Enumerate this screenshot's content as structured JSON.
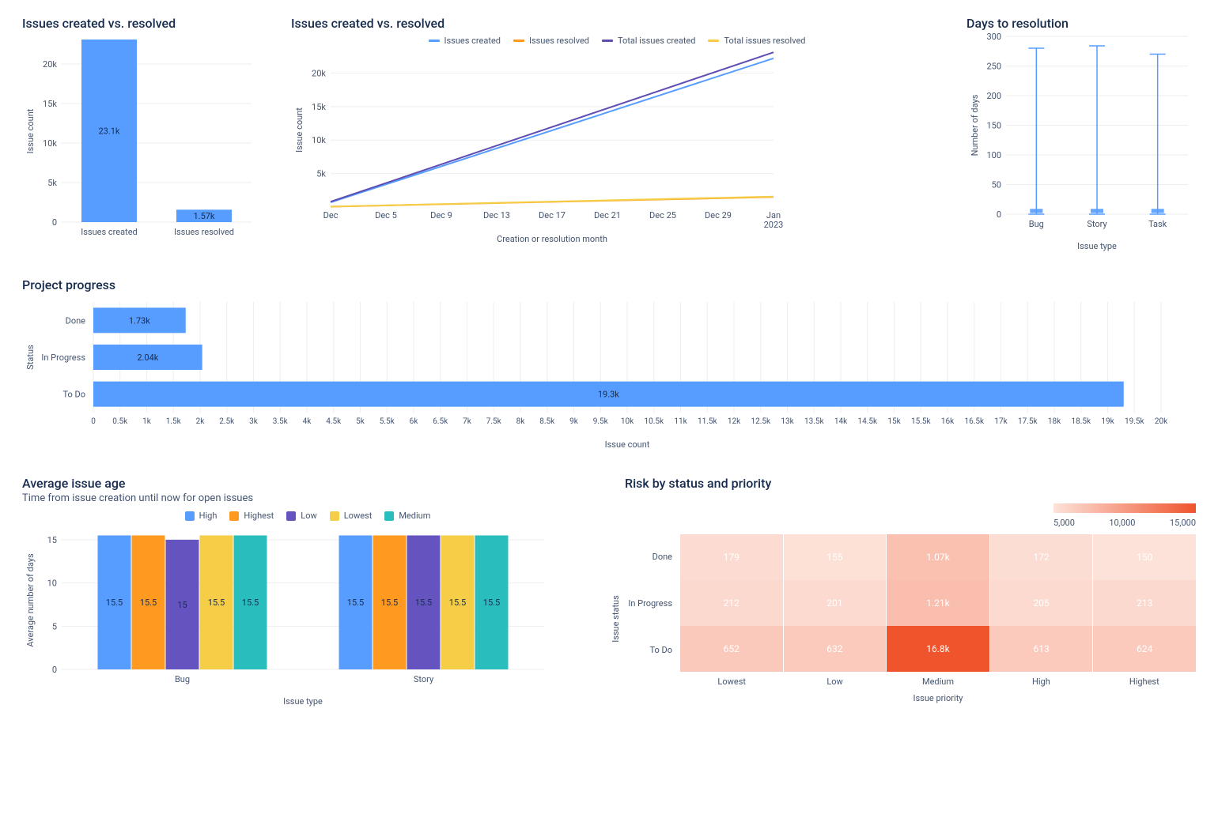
{
  "colors": {
    "blue": "#579dff",
    "blue_dark": "#5e4db2",
    "orange": "#ff991f",
    "amber": "#f5cd47",
    "purple": "#6554c0",
    "teal": "#2abdbd",
    "text": "#172b4d",
    "muted": "#44546f",
    "grid": "#eeeeee",
    "heat_min": "#fde2d9",
    "heat_max": "#ef542d"
  },
  "bar_chart": {
    "type": "bar",
    "title": "Issues created vs. resolved",
    "ylabel": "Issue count",
    "categories": [
      "Issues created",
      "Issues resolved"
    ],
    "values": [
      23100,
      1570
    ],
    "value_labels": [
      "23.1k",
      "1.57k"
    ],
    "ylim": [
      0,
      23000
    ],
    "yticks": [
      0,
      5000,
      10000,
      15000,
      20000
    ],
    "ytick_labels": [
      "0",
      "5k",
      "10k",
      "15k",
      "20k"
    ],
    "bar_color": "#579dff"
  },
  "line_chart": {
    "type": "line",
    "title": "Issues created vs. resolved",
    "xlabel": "Creation or resolution month",
    "ylabel": "Issue count",
    "legend": [
      "Issues created",
      "Issues resolved",
      "Total issues created",
      "Total issues resolved"
    ],
    "legend_colors": [
      "#579dff",
      "#ff991f",
      "#5e4db2",
      "#f5cd47"
    ],
    "xticks": [
      "Dec",
      "Dec 5",
      "Dec 9",
      "Dec 13",
      "Dec 17",
      "Dec 21",
      "Dec 25",
      "Dec 29",
      "Jan 2023"
    ],
    "ylim": [
      0,
      23000
    ],
    "yticks": [
      5000,
      10000,
      15000,
      20000
    ],
    "ytick_labels": [
      "5k",
      "10k",
      "15k",
      "20k"
    ],
    "series": {
      "issues_created": {
        "color": "#579dff",
        "y_start": 700,
        "y_end": 22200
      },
      "total_created": {
        "color": "#5e4db2",
        "y_start": 800,
        "y_end": 23100
      },
      "issues_resolved": {
        "color": "#ff991f",
        "y_start": 60,
        "y_end": 1500
      },
      "total_resolved": {
        "color": "#f5cd47",
        "y_start": 70,
        "y_end": 1570
      }
    }
  },
  "resolution_chart": {
    "type": "boxplot",
    "title": "Days to resolution",
    "ylabel": "Number of days",
    "xlabel": "Issue type",
    "categories": [
      "Bug",
      "Story",
      "Task"
    ],
    "yticks": [
      0,
      50,
      100,
      150,
      200,
      250,
      300
    ],
    "whisker_low": [
      0,
      0,
      0
    ],
    "whisker_high": [
      280,
      284,
      270
    ],
    "box_low": [
      2,
      2,
      2
    ],
    "box_high": [
      9,
      9,
      9
    ],
    "median": [
      5,
      5,
      5
    ],
    "color": "#579dff"
  },
  "progress_chart": {
    "type": "horizontal_bar",
    "title": "Project progress",
    "ylabel": "Status",
    "xlabel": "Issue count",
    "categories": [
      "Done",
      "In Progress",
      "To Do"
    ],
    "values": [
      1730,
      2040,
      19300
    ],
    "value_labels": [
      "1.73k",
      "2.04k",
      "19.3k"
    ],
    "xlim": [
      0,
      20000
    ],
    "xtick_step": 500,
    "bar_color": "#579dff"
  },
  "age_chart": {
    "type": "grouped_bar",
    "title": "Average issue age",
    "subtitle": "Time from issue creation until now for open issues",
    "ylabel": "Average number of days",
    "xlabel": "Issue type",
    "groups": [
      "Bug",
      "Story"
    ],
    "series_names": [
      "High",
      "Highest",
      "Low",
      "Lowest",
      "Medium"
    ],
    "series_colors": [
      "#579dff",
      "#ff991f",
      "#6554c0",
      "#f5cd47",
      "#2abdbd"
    ],
    "values": [
      [
        15.5,
        15.5,
        15.0,
        15.5,
        15.5
      ],
      [
        15.5,
        15.5,
        15.5,
        15.5,
        15.5
      ]
    ],
    "ylim": [
      0,
      16
    ],
    "yticks": [
      0,
      5,
      10,
      15
    ]
  },
  "heatmap": {
    "type": "heatmap",
    "title": "Risk by status and priority",
    "ylabel": "Issue status",
    "xlabel": "Issue priority",
    "rows": [
      "Done",
      "In Progress",
      "To Do"
    ],
    "cols": [
      "Lowest",
      "Low",
      "Medium",
      "High",
      "Highest"
    ],
    "values": [
      [
        179,
        155,
        1070,
        172,
        150
      ],
      [
        212,
        201,
        1210,
        205,
        213
      ],
      [
        652,
        632,
        16800,
        613,
        624
      ]
    ],
    "value_labels": [
      [
        "179",
        "155",
        "1.07k",
        "172",
        "150"
      ],
      [
        "212",
        "201",
        "1.21k",
        "205",
        "213"
      ],
      [
        "652",
        "632",
        "16.8k",
        "613",
        "624"
      ]
    ],
    "scale_ticks": [
      "5,000",
      "10,000",
      "15,000"
    ],
    "color_min": "#fde2d9",
    "color_max": "#ef542d"
  }
}
